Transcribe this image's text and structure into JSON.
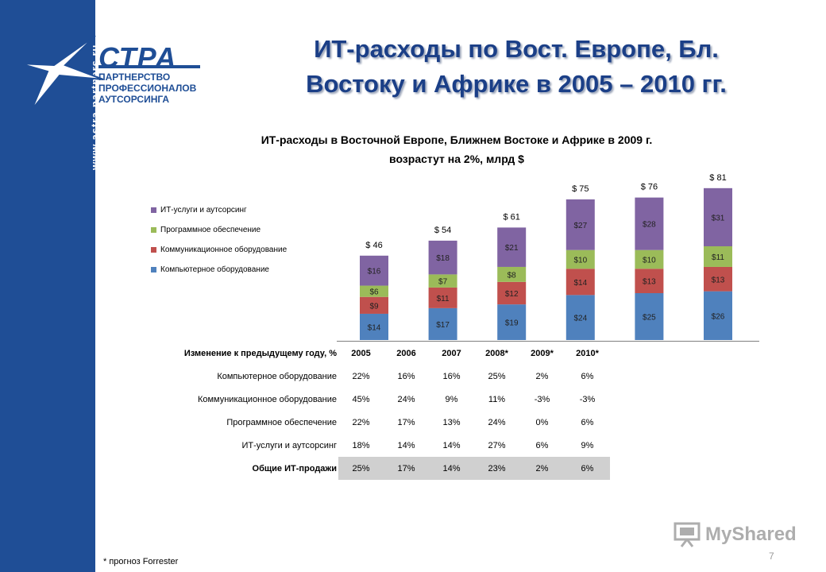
{
  "header": {
    "brand_name": "СТРА",
    "brand_tagline": [
      "ПАРТНЕРСТВО",
      "ПРОФЕССИОНАЛОВ",
      "АУТСОРСИНГА"
    ],
    "site_url": "www.astra-partners.ru",
    "title_lines": [
      "ИТ-расходы по Вост. Европе, Бл.",
      "Востоку и Африке в 2005 – 2010 гг."
    ]
  },
  "chart_data": {
    "type": "bar",
    "stacked": true,
    "title": "ИТ-расходы в Восточной Европе, Ближнем Востоке и Африке в 2009 г. возрастут на 2%, млрд $",
    "title_lines": [
      "ИТ-расходы в Восточной Европе, Ближнем Востоке и Африке в 2009 г.",
      "возрастут на 2%, млрд $"
    ],
    "categories": [
      "2005",
      "2006",
      "2007",
      "2008*",
      "2009*",
      "2010*"
    ],
    "series": [
      {
        "name": "Компьютерное оборудование",
        "color": "#4f81bd",
        "values": [
          14,
          17,
          19,
          24,
          25,
          26
        ],
        "labels": [
          "$14",
          "$17",
          "$19",
          "$24",
          "$25",
          "$26"
        ]
      },
      {
        "name": "Коммуникационное оборудование",
        "color": "#c0504d",
        "values": [
          9,
          11,
          12,
          14,
          13,
          13
        ],
        "labels": [
          "$9",
          "$11",
          "$12",
          "$14",
          "$13",
          "$13"
        ]
      },
      {
        "name": "Программное обеспечение",
        "color": "#9bbb59",
        "values": [
          6,
          7,
          8,
          10,
          10,
          11
        ],
        "labels": [
          "$6",
          "$7",
          "$8",
          "$10",
          "$10",
          "$11"
        ]
      },
      {
        "name": "ИТ-услуги и аутсорсинг",
        "color": "#8064a2",
        "values": [
          16,
          18,
          21,
          27,
          28,
          31
        ],
        "labels": [
          "$16",
          "$18",
          "$21",
          "$27",
          "$28",
          "$31"
        ]
      }
    ],
    "totals": [
      46,
      54,
      61,
      75,
      76,
      81
    ],
    "total_labels": [
      "$ 46",
      "$ 54",
      "$ 61",
      "$ 75",
      "$ 76",
      "$ 81"
    ],
    "legend_order": [
      "ИТ-услуги и аутсорсинг",
      "Программное обеспечение",
      "Коммуникационное оборудование",
      "Компьютерное оборудование"
    ],
    "legend_position": "left",
    "grid": false
  },
  "growth_table": {
    "header": "Изменение к предыдущему году, %",
    "years": [
      "2005",
      "2006",
      "2007",
      "2008*",
      "2009*",
      "2010*"
    ],
    "rows": [
      {
        "label": "Компьютерное оборудование",
        "values": [
          "22%",
          "16%",
          "16%",
          "25%",
          "2%",
          "6%"
        ]
      },
      {
        "label": "Коммуникационное оборудование",
        "values": [
          "45%",
          "24%",
          "9%",
          "11%",
          "-3%",
          "-3%"
        ]
      },
      {
        "label": "Программное обеспечение",
        "values": [
          "22%",
          "17%",
          "13%",
          "24%",
          "0%",
          "6%"
        ]
      },
      {
        "label": "ИТ-услуги и аутсорсинг",
        "values": [
          "18%",
          "14%",
          "14%",
          "27%",
          "6%",
          "9%"
        ]
      }
    ],
    "total_row": {
      "label": "Общие ИТ-продажи",
      "values": [
        "25%",
        "17%",
        "14%",
        "23%",
        "2%",
        "6%"
      ]
    }
  },
  "footer": {
    "footnote": "* прогноз Forrester",
    "page_number": "7",
    "watermark": "MyShared"
  }
}
